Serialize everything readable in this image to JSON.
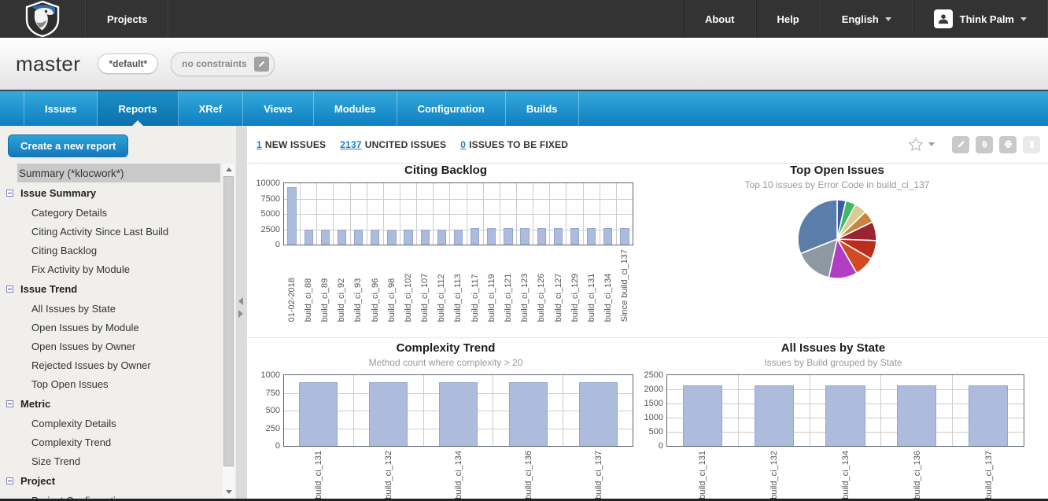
{
  "navbar": {
    "brand": "Klocwork",
    "projects_label": "Projects",
    "about_label": "About",
    "help_label": "Help",
    "language_label": "English",
    "user_label": "Think Palm"
  },
  "project_header": {
    "title": "master",
    "default_badge": "*default*",
    "constraints_label": "no constraints"
  },
  "tabs": {
    "items": [
      "Issues",
      "Reports",
      "XRef",
      "Views",
      "Modules",
      "Configuration",
      "Builds"
    ],
    "active": "Reports"
  },
  "sidebar": {
    "create_button": "Create a new report",
    "items": [
      {
        "label": "Summary (*klocwork*)",
        "type": "selected"
      },
      {
        "label": "Issue Summary",
        "type": "group"
      },
      {
        "label": "Category Details",
        "type": "child"
      },
      {
        "label": "Citing Activity Since Last Build",
        "type": "child"
      },
      {
        "label": "Citing Backlog",
        "type": "child"
      },
      {
        "label": "Fix Activity by Module",
        "type": "child"
      },
      {
        "label": "Issue Trend",
        "type": "group"
      },
      {
        "label": "All Issues by State",
        "type": "child"
      },
      {
        "label": "Open Issues by Module",
        "type": "child"
      },
      {
        "label": "Open Issues by Owner",
        "type": "child"
      },
      {
        "label": "Rejected Issues by Owner",
        "type": "child"
      },
      {
        "label": "Top Open Issues",
        "type": "child"
      },
      {
        "label": "Metric",
        "type": "group"
      },
      {
        "label": "Complexity Details",
        "type": "child"
      },
      {
        "label": "Complexity Trend",
        "type": "child"
      },
      {
        "label": "Size Trend",
        "type": "child"
      },
      {
        "label": "Project",
        "type": "group"
      },
      {
        "label": "Project Configuration",
        "type": "child"
      }
    ]
  },
  "report_header": {
    "stats": [
      {
        "count": "1",
        "label": "NEW ISSUES"
      },
      {
        "count": "2137",
        "label": "UNCITED ISSUES"
      },
      {
        "count": "0",
        "label": "ISSUES TO BE FIXED"
      }
    ]
  },
  "colors": {
    "accent_blue": "#1486c8",
    "link_blue": "#1d7fc1",
    "bar_fill": "#adbbdc",
    "bar_border": "#93a6d0",
    "selected_row": "#c9c9c9"
  },
  "chart_data": [
    {
      "type": "bar",
      "title": "Citing Backlog",
      "categories": [
        "01-02-2018",
        "build_ci_88",
        "build_ci_89",
        "build_ci_92",
        "build_ci_93",
        "build_ci_96",
        "build_ci_98",
        "build_ci_102",
        "build_ci_107",
        "build_ci_112",
        "build_ci_113",
        "build_ci_117",
        "build_ci_119",
        "build_ci_121",
        "build_ci_123",
        "build_ci_126",
        "build_ci_127",
        "build_ci_129",
        "build_ci_131",
        "build_ci_134",
        "Since build_ci_137"
      ],
      "values": [
        9300,
        2400,
        2400,
        2400,
        2450,
        2450,
        2350,
        2450,
        2450,
        2400,
        2450,
        2700,
        2650,
        2700,
        2700,
        2700,
        2700,
        2700,
        2700,
        2700,
        2700
      ],
      "ylim": [
        0,
        10000
      ],
      "yticks": [
        0,
        2500,
        5000,
        7500,
        10000
      ],
      "grid": true
    },
    {
      "type": "pie",
      "title": "Top Open Issues",
      "subtitle": "Top 10 issues by Error Code in build_ci_137",
      "slices": [
        {
          "value": 3.6,
          "color": "#3b5ba5"
        },
        {
          "value": 4.2,
          "color": "#41b964"
        },
        {
          "value": 5.0,
          "color": "#d8cc8e"
        },
        {
          "value": 5.0,
          "color": "#c9853f"
        },
        {
          "value": 7.8,
          "color": "#9b2433"
        },
        {
          "value": 7.8,
          "color": "#bb2d1c"
        },
        {
          "value": 8.3,
          "color": "#d24a1e"
        },
        {
          "value": 11.7,
          "color": "#b23cc4"
        },
        {
          "value": 15.6,
          "color": "#8e98a0"
        },
        {
          "value": 31.0,
          "color": "#5a7da9"
        }
      ]
    },
    {
      "type": "bar",
      "title": "Complexity Trend",
      "subtitle": "Method count where complexity > 20",
      "categories": [
        "build_ci_131",
        "build_ci_132",
        "build_ci_134",
        "build_ci_136",
        "build_ci_137"
      ],
      "values": [
        900,
        900,
        900,
        905,
        905
      ],
      "ylim": [
        0,
        1000
      ],
      "yticks": [
        0,
        250,
        500,
        750,
        1000
      ],
      "grid": true
    },
    {
      "type": "bar",
      "title": "All Issues by State",
      "subtitle": "Issues by Build grouped by State",
      "categories": [
        "build_ci_131",
        "build_ci_132",
        "build_ci_134",
        "build_ci_136",
        "build_ci_137"
      ],
      "values": [
        2150,
        2150,
        2150,
        2150,
        2150
      ],
      "ylim": [
        0,
        2500
      ],
      "yticks": [
        0,
        500,
        1000,
        1500,
        2000,
        2500
      ],
      "grid": true
    }
  ]
}
